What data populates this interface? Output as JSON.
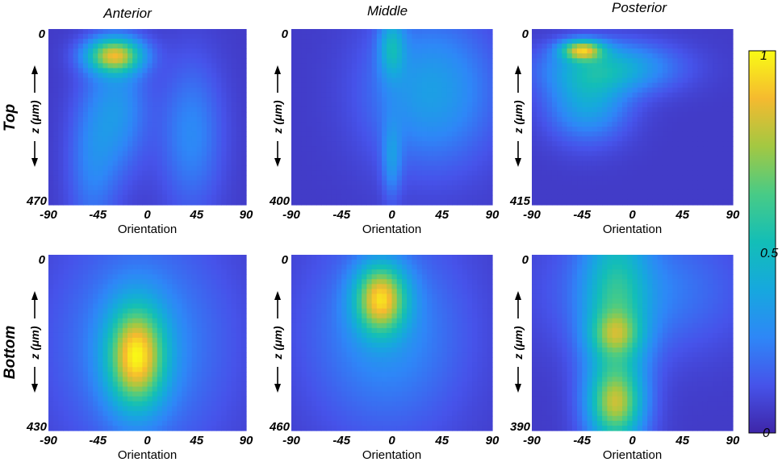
{
  "chart_data": {
    "type": "heatmap",
    "columns": [
      "Anterior",
      "Middle",
      "Posterior"
    ],
    "rows": [
      "Top",
      "Bottom"
    ],
    "colormap": "parula",
    "colorbar": {
      "min": 0,
      "max": 1,
      "ticks": [
        "0",
        "0.5",
        "1"
      ]
    },
    "x_ticks": [
      "-90",
      "-45",
      "0",
      "45",
      "90"
    ],
    "xlim": [
      -90,
      90
    ],
    "xlabel": "Orientation",
    "ylabel": "z (μm)",
    "panels": [
      {
        "row": "Top",
        "column": "Anterior",
        "zmax": 470,
        "y_ticks": [
          "0",
          "470"
        ],
        "blobs": [
          {
            "x": -30,
            "z": 0.15,
            "sx": 18,
            "sz": 0.07,
            "amp": 0.7
          },
          {
            "x": -25,
            "z": 0.45,
            "sx": 18,
            "sz": 0.25,
            "amp": 0.22
          },
          {
            "x": 40,
            "z": 0.6,
            "sx": 20,
            "sz": 0.3,
            "amp": 0.2
          },
          {
            "x": -50,
            "z": 0.75,
            "sx": 16,
            "sz": 0.3,
            "amp": 0.18
          }
        ]
      },
      {
        "row": "Top",
        "column": "Middle",
        "zmax": 400,
        "y_ticks": [
          "0",
          "400"
        ],
        "blobs": [
          {
            "x": 35,
            "z": 0.35,
            "sx": 40,
            "sz": 0.3,
            "amp": 0.28
          },
          {
            "x": 0,
            "z": 0.1,
            "sx": 8,
            "sz": 0.12,
            "amp": 0.3
          },
          {
            "x": 0,
            "z": 0.75,
            "sx": 6,
            "sz": 0.15,
            "amp": 0.2
          }
        ]
      },
      {
        "row": "Top",
        "column": "Posterior",
        "zmax": 415,
        "y_ticks": [
          "0",
          "415"
        ],
        "blobs": [
          {
            "x": -45,
            "z": 0.12,
            "sx": 13,
            "sz": 0.04,
            "amp": 0.65
          },
          {
            "x": -20,
            "z": 0.22,
            "sx": 40,
            "sz": 0.1,
            "amp": 0.35
          },
          {
            "x": -40,
            "z": 0.42,
            "sx": 25,
            "sz": 0.15,
            "amp": 0.3
          }
        ]
      },
      {
        "row": "Bottom",
        "column": "Anterior",
        "zmax": 430,
        "y_ticks": [
          "0",
          "430"
        ],
        "blobs": [
          {
            "x": -10,
            "z": 0.58,
            "sx": 18,
            "sz": 0.2,
            "amp": 0.72
          },
          {
            "x": -5,
            "z": 0.5,
            "sx": 55,
            "sz": 0.45,
            "amp": 0.22
          }
        ]
      },
      {
        "row": "Bottom",
        "column": "Middle",
        "zmax": 460,
        "y_ticks": [
          "0",
          "460"
        ],
        "blobs": [
          {
            "x": -10,
            "z": 0.25,
            "sx": 16,
            "sz": 0.14,
            "amp": 0.7
          },
          {
            "x": -5,
            "z": 0.45,
            "sx": 50,
            "sz": 0.4,
            "amp": 0.22
          }
        ]
      },
      {
        "row": "Bottom",
        "column": "Posterior",
        "zmax": 390,
        "y_ticks": [
          "0",
          "390"
        ],
        "blobs": [
          {
            "x": -15,
            "z": 0.5,
            "sx": 20,
            "sz": 0.55,
            "amp": 0.42
          },
          {
            "x": -15,
            "z": 0.85,
            "sx": 16,
            "sz": 0.12,
            "amp": 0.4
          },
          {
            "x": -15,
            "z": 0.45,
            "sx": 15,
            "sz": 0.08,
            "amp": 0.25
          },
          {
            "x": 10,
            "z": 0.2,
            "sx": 60,
            "sz": 0.25,
            "amp": 0.18
          }
        ]
      }
    ]
  }
}
